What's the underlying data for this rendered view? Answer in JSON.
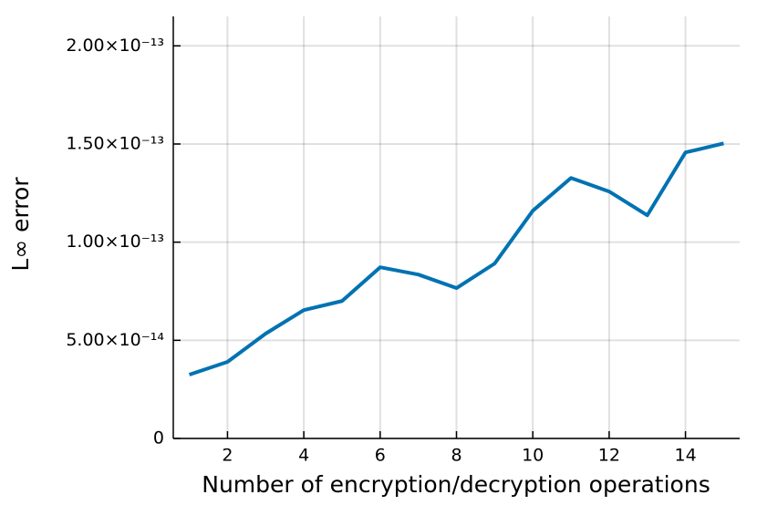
{
  "chart_data": {
    "type": "line",
    "xlabel": "Number of encryption/decryption operations",
    "ylabel": "L∞ error",
    "x": [
      1,
      2,
      3,
      4,
      5,
      6,
      7,
      8,
      9,
      10,
      11,
      12,
      13,
      14,
      15
    ],
    "series": [
      {
        "name": "L∞ error",
        "color": "#0072b2",
        "values": [
          3.25e-14,
          3.9e-14,
          5.34e-14,
          6.54e-14,
          7e-14,
          8.72e-14,
          8.35e-14,
          7.66e-14,
          8.91e-14,
          1.16e-13,
          1.327e-13,
          1.258e-13,
          1.137e-13,
          1.457e-13,
          1.503e-13
        ]
      }
    ],
    "xlim": [
      0.58,
      15.42
    ],
    "xticks": [
      2,
      4,
      6,
      8,
      10,
      12,
      14
    ],
    "ylim": [
      0,
      2.15e-13
    ],
    "yticks": [
      0,
      {
        "value": 5e-14,
        "label": "5.00×10⁻¹⁴"
      },
      {
        "value": 1e-13,
        "label": "1.00×10⁻¹³"
      },
      {
        "value": 1.5e-13,
        "label": "1.50×10⁻¹³"
      },
      {
        "value": 2e-13,
        "label": "2.00×10⁻¹³"
      }
    ],
    "grid": true
  }
}
